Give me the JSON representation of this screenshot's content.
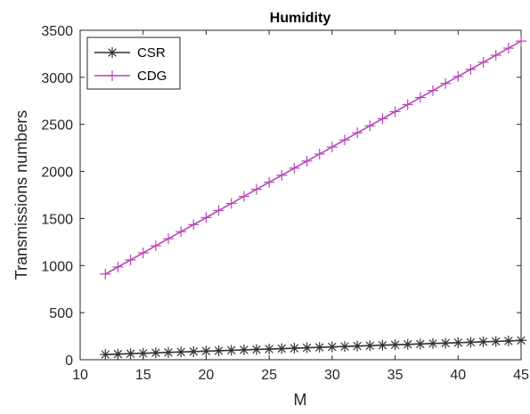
{
  "chart_data": {
    "type": "line",
    "title": "Humidity",
    "xlabel": "M",
    "ylabel": "Transmissions numbers",
    "xlim": [
      10,
      45
    ],
    "ylim": [
      0,
      3500
    ],
    "xticks": [
      10,
      15,
      20,
      25,
      30,
      35,
      40,
      45
    ],
    "yticks": [
      0,
      500,
      1000,
      1500,
      2000,
      2500,
      3000,
      3500
    ],
    "xtick_labels": [
      "10",
      "15",
      "20",
      "25",
      "30",
      "35",
      "40",
      "45"
    ],
    "ytick_labels": [
      "0",
      "500",
      "1000",
      "1500",
      "2000",
      "2500",
      "3000",
      "3500"
    ],
    "grid": false,
    "legend_position": "top-left",
    "x": [
      12,
      13,
      14,
      15,
      16,
      17,
      18,
      19,
      20,
      21,
      22,
      23,
      24,
      25,
      26,
      27,
      28,
      29,
      30,
      31,
      32,
      33,
      34,
      35,
      36,
      37,
      38,
      39,
      40,
      41,
      42,
      43,
      44,
      45
    ],
    "series": [
      {
        "name": "CSR",
        "color": "#333333",
        "marker": "asterisk",
        "values": [
          55,
          59,
          64,
          68,
          73,
          77,
          82,
          86,
          91,
          95,
          100,
          104,
          109,
          113,
          118,
          122,
          127,
          131,
          136,
          140,
          145,
          149,
          154,
          158,
          163,
          167,
          172,
          176,
          181,
          185,
          190,
          194,
          199,
          205
        ]
      },
      {
        "name": "CDG",
        "color": "#b845b8",
        "marker": "plus",
        "values": [
          910,
          985,
          1060,
          1135,
          1210,
          1285,
          1360,
          1435,
          1510,
          1585,
          1660,
          1735,
          1810,
          1885,
          1960,
          2035,
          2110,
          2185,
          2260,
          2335,
          2410,
          2485,
          2560,
          2635,
          2710,
          2785,
          2860,
          2935,
          3010,
          3085,
          3160,
          3235,
          3310,
          3385
        ]
      }
    ]
  }
}
